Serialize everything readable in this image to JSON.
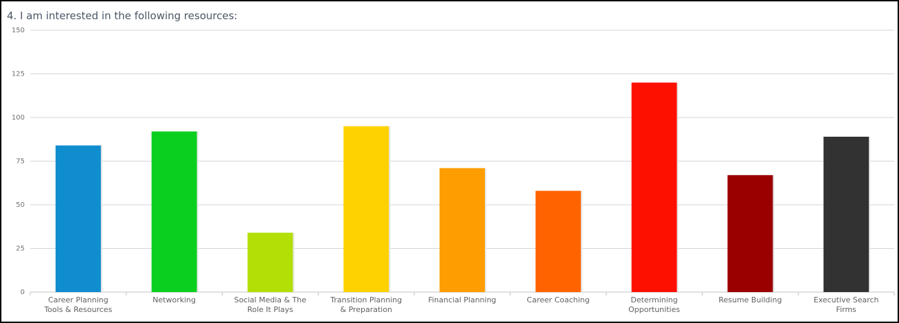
{
  "chart_data": {
    "type": "bar",
    "title": "4. I am interested in the following resources:",
    "xlabel": "",
    "ylabel": "",
    "ylim": [
      0,
      150
    ],
    "yticks": [
      0,
      25,
      50,
      75,
      100,
      125,
      150
    ],
    "grid": true,
    "legend": "none",
    "categories": [
      "Career Planning Tools & Resources",
      "Networking",
      "Social Media & The Role It Plays",
      "Transition Planning & Preparation",
      "Financial Planning",
      "Career Coaching",
      "Determining Opportunities",
      "Resume Building",
      "Executive Search Firms"
    ],
    "category_label_lines": [
      [
        "Career Planning",
        "Tools & Resources"
      ],
      [
        "Networking"
      ],
      [
        "Social Media & The",
        "Role It Plays"
      ],
      [
        "Transition Planning",
        "& Preparation"
      ],
      [
        "Financial Planning"
      ],
      [
        "Career Coaching"
      ],
      [
        "Determining",
        "Opportunities"
      ],
      [
        "Resume Building"
      ],
      [
        "Executive Search",
        "Firms"
      ]
    ],
    "values": [
      84,
      92,
      34,
      95,
      71,
      58,
      120,
      67,
      89
    ],
    "colors": [
      "#108dcf",
      "#0bcf1f",
      "#b2df06",
      "#fed200",
      "#fe9d00",
      "#fe6300",
      "#fe1000",
      "#9a0000",
      "#323232"
    ]
  }
}
